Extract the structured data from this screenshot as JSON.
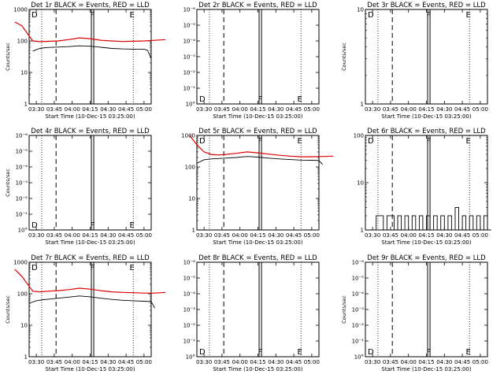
{
  "chart_data": [
    {
      "type": "line",
      "title": "Det 1r BLACK = Events, RED = LLD",
      "ylabel": "Counts/sec",
      "xlabel": "Start Time (10-Dec-15 03:25:00)",
      "x_ticks": [
        "03:30",
        "03:45",
        "04:00",
        "04:15",
        "04:30",
        "04:45",
        "05:00"
      ],
      "scale": "log",
      "yticks": [
        "1",
        "10",
        "100",
        "1000"
      ],
      "ylim": [
        1,
        1000
      ],
      "markers": [
        {
          "label": "D",
          "pos": "top"
        },
        {
          "label": "F",
          "pos": "top"
        },
        {
          "label": "E",
          "pos": "top"
        }
      ],
      "series": [
        {
          "name": "LLD",
          "color": "#dd0000",
          "points": [
            [
              -12,
              400
            ],
            [
              -10,
              300
            ],
            [
              -7,
              100
            ],
            [
              -5,
              95
            ],
            [
              -3,
              97
            ],
            [
              0,
              100
            ],
            [
              3,
              110
            ],
            [
              6,
              125
            ],
            [
              9,
              118
            ],
            [
              12,
              105
            ],
            [
              15,
              100
            ],
            [
              18,
              96
            ],
            [
              21,
              98
            ],
            [
              24,
              100
            ],
            [
              27,
              105
            ],
            [
              30,
              110
            ]
          ]
        },
        {
          "name": "Events",
          "color": "#000000",
          "points": [
            [
              -7,
              48
            ],
            [
              -5,
              58
            ],
            [
              -3,
              62
            ],
            [
              0,
              64
            ],
            [
              3,
              66
            ],
            [
              6,
              70
            ],
            [
              9,
              68
            ],
            [
              12,
              63
            ],
            [
              15,
              58
            ],
            [
              18,
              56
            ],
            [
              21,
              55
            ],
            [
              24,
              55
            ],
            [
              25,
              50
            ],
            [
              26,
              28
            ]
          ]
        }
      ]
    },
    {
      "type": "line",
      "title": "Det 2r BLACK = Events, RED = LLD",
      "ylabel": "",
      "xlabel": "Start Time (10-Dec-15 03:25:00)",
      "x_ticks": [
        "03:30",
        "03:45",
        "04:00",
        "04:15",
        "04:30",
        "04:45",
        "05:00"
      ],
      "scale": "exp",
      "yticks": [
        "10°",
        "10⁻¹",
        "10⁻²",
        "10⁻³",
        "10⁻⁴",
        "10⁻⁵",
        "10⁻⁶"
      ],
      "markers": [
        {
          "label": "D",
          "pos": "bottom"
        },
        {
          "label": "F",
          "pos": "bottom"
        },
        {
          "label": "E",
          "pos": "bottom"
        }
      ],
      "series": []
    },
    {
      "type": "line",
      "title": "Det 3r BLACK = Events, RED = LLD",
      "ylabel": "Counts/sec",
      "xlabel": "Start Time (10-Dec-15 03:25:00)",
      "x_ticks": [
        "03:30",
        "03:45",
        "04:00",
        "04:15",
        "04:30",
        "04:45",
        "05:00"
      ],
      "scale": "log",
      "yticks": [
        "1",
        "10"
      ],
      "ylim": [
        1,
        10
      ],
      "markers": [
        {
          "label": "D",
          "pos": "top"
        },
        {
          "label": "F",
          "pos": "top"
        },
        {
          "label": "E",
          "pos": "top"
        }
      ],
      "series": []
    },
    {
      "type": "line",
      "title": "Det 4r BLACK = Events, RED = LLD",
      "ylabel": "Counts/sec",
      "xlabel": "Start Time (10-Dec-15 03:25:00)",
      "x_ticks": [
        "03:30",
        "03:45",
        "04:00",
        "04:15",
        "04:30",
        "04:45",
        "05:00"
      ],
      "scale": "exp",
      "yticks": [
        "10°",
        "10⁻¹",
        "10⁻²",
        "10⁻³",
        "10⁻⁴",
        "10⁻⁵",
        "10⁻⁶"
      ],
      "markers": [
        {
          "label": "D",
          "pos": "bottom"
        },
        {
          "label": "F",
          "pos": "bottom"
        },
        {
          "label": "E",
          "pos": "bottom"
        }
      ],
      "series": []
    },
    {
      "type": "line",
      "title": "Det 5r BLACK = Events, RED = LLD",
      "ylabel": "",
      "xlabel": "Start Time (10-Dec-15 03:25:00)",
      "x_ticks": [
        "03:30",
        "03:45",
        "04:00",
        "04:15",
        "04:30",
        "04:45",
        "05:00"
      ],
      "scale": "log",
      "yticks": [
        "1",
        "10",
        "100",
        "1000"
      ],
      "ylim": [
        1,
        1000
      ],
      "markers": [
        {
          "label": "D",
          "pos": "top"
        },
        {
          "label": "F",
          "pos": "top"
        },
        {
          "label": "E",
          "pos": "top"
        }
      ],
      "series": [
        {
          "name": "LLD",
          "color": "#dd0000",
          "points": [
            [
              -10,
              1000
            ],
            [
              -8,
              500
            ],
            [
              -6,
              300
            ],
            [
              -4,
              250
            ],
            [
              -2,
              240
            ],
            [
              0,
              250
            ],
            [
              3,
              270
            ],
            [
              6,
              300
            ],
            [
              9,
              280
            ],
            [
              12,
              255
            ],
            [
              15,
              235
            ],
            [
              18,
              220
            ],
            [
              21,
              210
            ],
            [
              24,
              210
            ],
            [
              27,
              215
            ],
            [
              30,
              220
            ]
          ]
        },
        {
          "name": "Events",
          "color": "#000000",
          "points": [
            [
              -8,
              130
            ],
            [
              -6,
              170
            ],
            [
              -4,
              180
            ],
            [
              -2,
              185
            ],
            [
              0,
              190
            ],
            [
              3,
              200
            ],
            [
              6,
              215
            ],
            [
              9,
              205
            ],
            [
              12,
              190
            ],
            [
              15,
              180
            ],
            [
              18,
              172
            ],
            [
              21,
              165
            ],
            [
              24,
              163
            ],
            [
              26,
              160
            ],
            [
              27,
              120
            ]
          ]
        }
      ]
    },
    {
      "type": "line",
      "title": "Det 6r BLACK = Events, RED = LLD",
      "ylabel": "",
      "xlabel": "Start Time (10-Dec-15 03:25:00)",
      "x_ticks": [
        "03:30",
        "03:45",
        "04:00",
        "04:15",
        "04:30",
        "04:45",
        "05:00"
      ],
      "scale": "log",
      "yticks": [
        "1",
        "10",
        "100"
      ],
      "ylim": [
        1,
        100
      ],
      "markers": [
        {
          "label": "D",
          "pos": "top"
        },
        {
          "label": "F",
          "pos": "top"
        },
        {
          "label": "E",
          "pos": "top"
        }
      ],
      "series": [
        {
          "name": "Events",
          "color": "#000000",
          "step": true,
          "points": [
            [
              -6,
              1
            ],
            [
              -5,
              2
            ],
            [
              -3,
              1
            ],
            [
              -2,
              2
            ],
            [
              0,
              1
            ],
            [
              1,
              2
            ],
            [
              2,
              1
            ],
            [
              3,
              2
            ],
            [
              4,
              1
            ],
            [
              5,
              2
            ],
            [
              6,
              1
            ],
            [
              7,
              2
            ],
            [
              8,
              1
            ],
            [
              9,
              2
            ],
            [
              10,
              1
            ],
            [
              11,
              2
            ],
            [
              12,
              1
            ],
            [
              13,
              2
            ],
            [
              14,
              1
            ],
            [
              15,
              2
            ],
            [
              16,
              1
            ],
            [
              17,
              3
            ],
            [
              18,
              1
            ],
            [
              19,
              2
            ],
            [
              20,
              1
            ],
            [
              21,
              2
            ],
            [
              22,
              1
            ],
            [
              23,
              2
            ],
            [
              24,
              1
            ],
            [
              25,
              2
            ],
            [
              26,
              1
            ],
            [
              27,
              1
            ]
          ]
        }
      ]
    },
    {
      "type": "line",
      "title": "Det 7r BLACK = Events, RED = LLD",
      "ylabel": "Counts/sec",
      "xlabel": "Start Time (10-Dec-15 03:25:00)",
      "x_ticks": [
        "03:30",
        "03:45",
        "04:00",
        "04:15",
        "04:30",
        "04:45",
        "05:00"
      ],
      "scale": "log",
      "yticks": [
        "1",
        "10",
        "100",
        "1000"
      ],
      "ylim": [
        1,
        1000
      ],
      "markers": [
        {
          "label": "D",
          "pos": "top"
        },
        {
          "label": "F",
          "pos": "top"
        },
        {
          "label": "E",
          "pos": "top"
        }
      ],
      "series": [
        {
          "name": "LLD",
          "color": "#dd0000",
          "points": [
            [
              -12,
              600
            ],
            [
              -10,
              350
            ],
            [
              -7,
              120
            ],
            [
              -5,
              115
            ],
            [
              -3,
              120
            ],
            [
              0,
              125
            ],
            [
              3,
              135
            ],
            [
              6,
              150
            ],
            [
              9,
              140
            ],
            [
              12,
              125
            ],
            [
              15,
              115
            ],
            [
              18,
              110
            ],
            [
              21,
              108
            ],
            [
              24,
              105
            ],
            [
              27,
              105
            ],
            [
              30,
              110
            ]
          ]
        },
        {
          "name": "Events",
          "color": "#000000",
          "points": [
            [
              -8,
              50
            ],
            [
              -6,
              60
            ],
            [
              -4,
              65
            ],
            [
              -2,
              68
            ],
            [
              0,
              72
            ],
            [
              3,
              78
            ],
            [
              6,
              85
            ],
            [
              9,
              80
            ],
            [
              12,
              72
            ],
            [
              15,
              66
            ],
            [
              18,
              62
            ],
            [
              21,
              60
            ],
            [
              24,
              58
            ],
            [
              26,
              56
            ],
            [
              27,
              35
            ]
          ]
        }
      ]
    },
    {
      "type": "line",
      "title": "Det 8r BLACK = Events, RED = LLD",
      "ylabel": "",
      "xlabel": "Start Time (10-Dec-15 03:25:00)",
      "x_ticks": [
        "03:30",
        "03:45",
        "04:00",
        "04:15",
        "04:30",
        "04:45",
        "05:00"
      ],
      "scale": "exp",
      "yticks": [
        "10°",
        "10⁻¹",
        "10⁻²",
        "10⁻³",
        "10⁻⁴",
        "10⁻⁵",
        "10⁻⁶"
      ],
      "markers": [
        {
          "label": "D",
          "pos": "bottom"
        },
        {
          "label": "F",
          "pos": "bottom"
        },
        {
          "label": "E",
          "pos": "bottom"
        }
      ],
      "series": []
    },
    {
      "type": "line",
      "title": "Det 9r BLACK = Events, RED = LLD",
      "ylabel": "Counts/sec",
      "xlabel": "Start Time (10-Dec-15 03:25:00)",
      "x_ticks": [
        "03:30",
        "03:45",
        "04:00",
        "04:15",
        "04:30",
        "04:45",
        "05:00"
      ],
      "scale": "exp",
      "yticks": [
        "10°",
        "10⁻¹",
        "10⁻²",
        "10⁻³",
        "10⁻⁴",
        "10⁻⁵",
        "10⁻⁶"
      ],
      "markers": [
        {
          "label": "D",
          "pos": "bottom"
        },
        {
          "label": "F",
          "pos": "bottom"
        },
        {
          "label": "E",
          "pos": "bottom"
        }
      ],
      "series": []
    }
  ]
}
